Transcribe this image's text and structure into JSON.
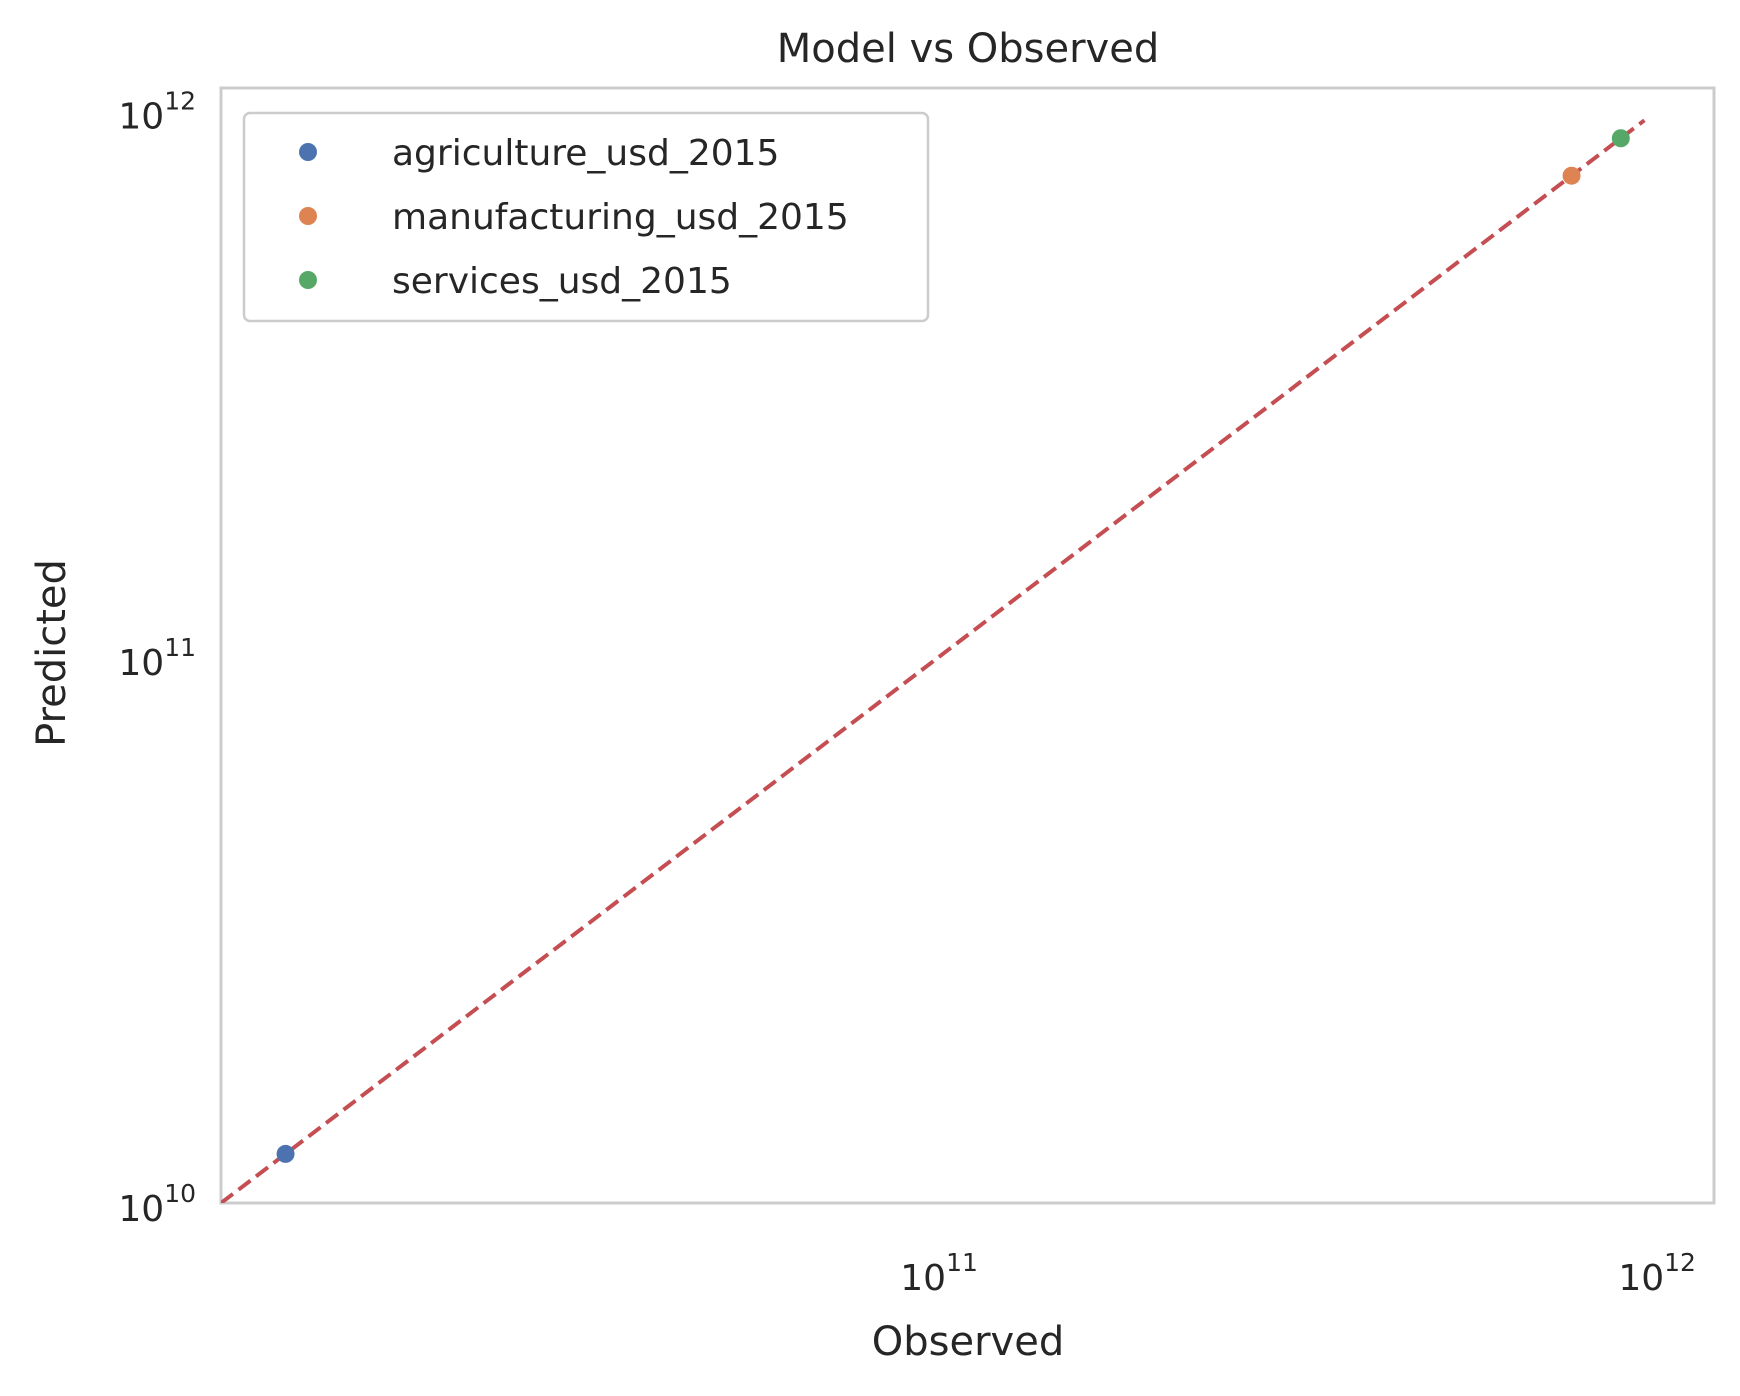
{
  "chart_data": {
    "type": "scatter",
    "title": "Model vs Observed",
    "xlabel": "Observed",
    "ylabel": "Predicted",
    "xscale": "log",
    "yscale": "log",
    "xlim": [
      10000000000,
      1200000000000
    ],
    "ylim": [
      10000000000,
      1100000000000
    ],
    "grid": false,
    "legend_position": "top-left",
    "x_ticks": [
      {
        "base": "10",
        "exp": "11",
        "value": 100000000000
      },
      {
        "base": "10",
        "exp": "12",
        "value": 1000000000000
      }
    ],
    "y_ticks": [
      {
        "base": "10",
        "exp": "10",
        "value": 10000000000
      },
      {
        "base": "10",
        "exp": "11",
        "value": 100000000000
      },
      {
        "base": "10",
        "exp": "12",
        "value": 1000000000000
      }
    ],
    "series": [
      {
        "name": "agriculture_usd_2015",
        "color": "#4c72b0",
        "points": [
          {
            "x": 12300000000,
            "y": 12300000000
          }
        ]
      },
      {
        "name": "manufacturing_usd_2015",
        "color": "#dd8452",
        "points": [
          {
            "x": 760000000000,
            "y": 760000000000
          }
        ]
      },
      {
        "name": "services_usd_2015",
        "color": "#55a868",
        "points": [
          {
            "x": 890000000000,
            "y": 890000000000
          }
        ]
      }
    ],
    "reference_line": {
      "style": "dashed",
      "color": "#c44e52",
      "from": [
        10000000000,
        10000000000
      ],
      "to": [
        960000000000,
        960000000000
      ]
    }
  }
}
